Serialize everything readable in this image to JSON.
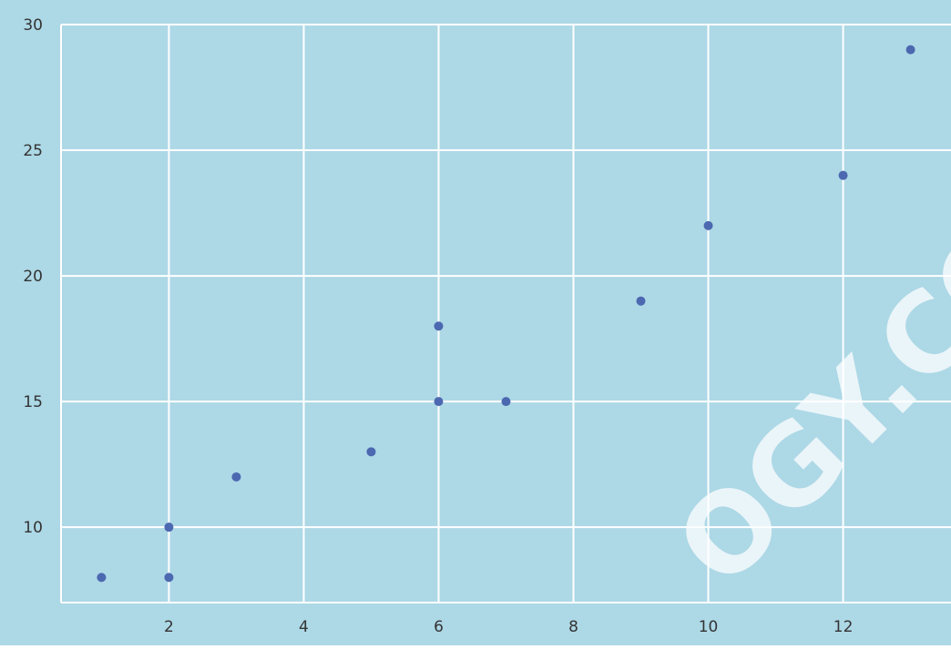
{
  "chart_data": {
    "type": "scatter",
    "title": "",
    "xlabel": "",
    "ylabel": "",
    "x": [
      1,
      2,
      2,
      3,
      5,
      6,
      6,
      7,
      9,
      10,
      12,
      13
    ],
    "y": [
      8,
      8,
      10,
      12,
      13,
      15,
      18,
      15,
      19,
      22,
      24,
      29
    ],
    "xlim": [
      0.4,
      13.6
    ],
    "ylim": [
      7,
      30
    ],
    "x_ticks": [
      "2",
      "4",
      "6",
      "8",
      "10",
      "12"
    ],
    "y_ticks": [
      "10",
      "15",
      "20",
      "25",
      "30"
    ],
    "grid": true,
    "colors": {
      "background": "#add8e6",
      "grid": "#ffffff",
      "marker": "#4c68b0",
      "tick_text": "#333333"
    }
  },
  "watermark": "OGY.CO"
}
